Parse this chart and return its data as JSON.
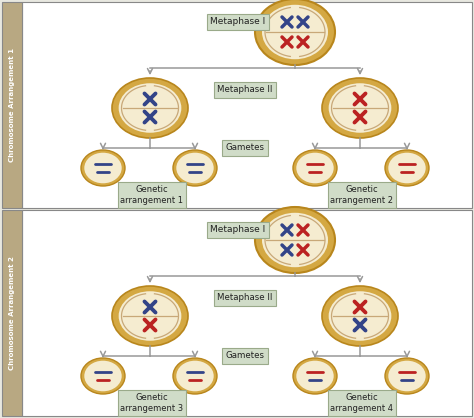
{
  "bg_color": "#e8e8e0",
  "panel_bg": "#ffffff",
  "side_label_bg": "#b8a882",
  "cell_outer_color": "#d4a843",
  "cell_outer_edge": "#b8861c",
  "cell_inner_color": "#f5ecd0",
  "label_box_color": "#d0dcc8",
  "label_box_edge": "#9aaa8a",
  "arrow_color": "#999999",
  "text_color": "#222222",
  "blue_chrom": "#334488",
  "red_chrom": "#bb2222",
  "spindle_color": "#c8a878",
  "side_labels": [
    "Chromosome Arrangement 1",
    "Chromosome Arrangement 2"
  ],
  "metaphase1_label": "Metaphase I",
  "metaphase2_label": "Metaphase II",
  "gametes_label": "Gametes",
  "genetic_labels": [
    "Genetic\narrangement 1",
    "Genetic\narrangement 2",
    "Genetic\narrangement 3",
    "Genetic\narrangement 4"
  ]
}
